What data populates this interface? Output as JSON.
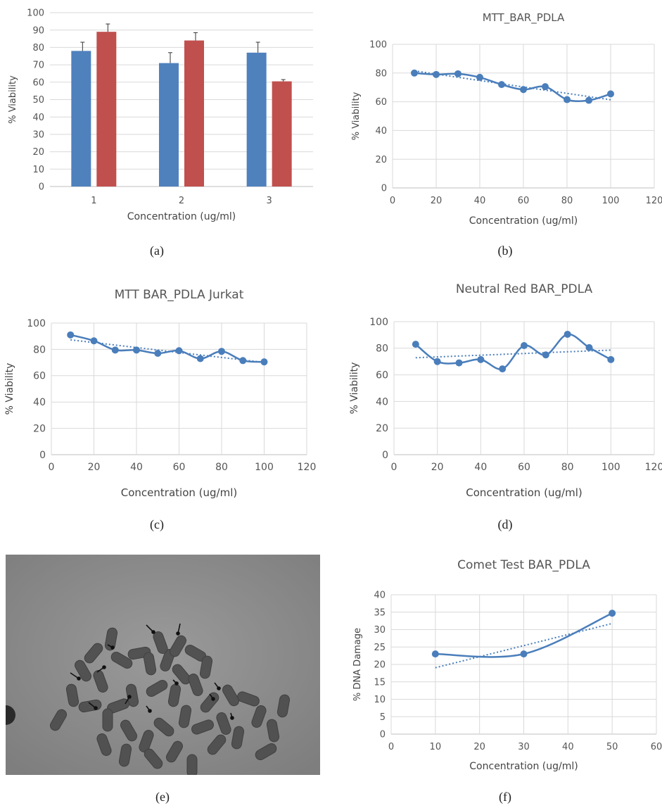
{
  "panels": [
    {
      "label": "(a)"
    },
    {
      "label": "(b)"
    },
    {
      "label": "(c)"
    },
    {
      "label": "(d)"
    },
    {
      "label": "(e)"
    },
    {
      "label": "(f)"
    }
  ],
  "chart_data": [
    {
      "id": "a",
      "type": "bar",
      "title": "",
      "xlabel": "Concentration (ug/ml)",
      "ylabel": "% Viability",
      "categories": [
        "1",
        "2",
        "3"
      ],
      "ylim": [
        0,
        100
      ],
      "yticks": [
        0,
        10,
        20,
        30,
        40,
        50,
        60,
        70,
        80,
        90,
        100
      ],
      "grid": true,
      "series": [
        {
          "values": [
            78,
            71,
            77
          ],
          "errors": [
            5,
            6,
            6
          ],
          "color": "#4f81bd"
        },
        {
          "values": [
            89,
            84,
            60.5
          ],
          "errors": [
            4.5,
            4.5,
            1
          ],
          "color": "#c0504d"
        }
      ]
    },
    {
      "id": "b",
      "type": "line",
      "title": "MTT_BAR_PDLA",
      "xlabel": "Concentration (ug/ml)",
      "ylabel": "% Viability",
      "xlim": [
        0,
        120
      ],
      "xticks": [
        0,
        20,
        40,
        60,
        80,
        100,
        120
      ],
      "ylim": [
        0,
        100
      ],
      "yticks": [
        0,
        20,
        40,
        60,
        80,
        100
      ],
      "grid": true,
      "trendline": true,
      "series": [
        {
          "color": "#4a7ebb",
          "x": [
            10,
            20,
            30,
            40,
            50,
            60,
            70,
            80,
            90,
            100
          ],
          "y": [
            80,
            79,
            79.5,
            77,
            72,
            68.5,
            70.5,
            61.5,
            61,
            65.5
          ]
        }
      ]
    },
    {
      "id": "c",
      "type": "line",
      "title": "MTT BAR_PDLA Jurkat",
      "xlabel": "Concentration (ug/ml)",
      "ylabel": "% Viability",
      "xlim": [
        0,
        120
      ],
      "xticks": [
        0,
        20,
        40,
        60,
        80,
        100,
        120
      ],
      "ylim": [
        0,
        100
      ],
      "yticks": [
        0,
        20,
        40,
        60,
        80,
        100
      ],
      "grid": true,
      "trendline": true,
      "series": [
        {
          "color": "#4a7ebb",
          "x": [
            9,
            20,
            30,
            40,
            50,
            60,
            70,
            80,
            90,
            100
          ],
          "y": [
            91,
            86.5,
            79.5,
            79.5,
            77,
            79,
            73,
            78.5,
            71.5,
            70.5
          ]
        }
      ]
    },
    {
      "id": "d",
      "type": "line",
      "title": "Neutral Red BAR_PDLA",
      "xlabel": "Concentration (ug/ml)",
      "ylabel": "% Viability",
      "xlim": [
        0,
        120
      ],
      "xticks": [
        0,
        20,
        40,
        60,
        80,
        100,
        120
      ],
      "ylim": [
        0,
        100
      ],
      "yticks": [
        0,
        20,
        40,
        60,
        80,
        100
      ],
      "grid": true,
      "trendline": true,
      "series": [
        {
          "color": "#4a7ebb",
          "x": [
            10,
            20,
            30,
            40,
            50,
            60,
            70,
            80,
            90,
            100
          ],
          "y": [
            83,
            70,
            69,
            71.5,
            64.5,
            82,
            75,
            90.5,
            80.5,
            71.5
          ]
        }
      ]
    },
    {
      "id": "f",
      "type": "line",
      "title": "Comet Test BAR_PDLA",
      "xlabel": "Concentration (ug/ml)",
      "ylabel": "% DNA Damage",
      "xlim": [
        0,
        60
      ],
      "xticks": [
        0,
        10,
        20,
        30,
        40,
        50,
        60
      ],
      "ylim": [
        0,
        40
      ],
      "yticks": [
        0,
        5,
        10,
        15,
        20,
        25,
        30,
        35,
        40
      ],
      "grid": true,
      "trendline": true,
      "series": [
        {
          "color": "#4a7ebb",
          "x": [
            10,
            30,
            50
          ],
          "y": [
            23,
            23,
            34.7
          ]
        }
      ]
    }
  ],
  "photo": {
    "description_icon": "metaphase-chromosome-spread"
  }
}
